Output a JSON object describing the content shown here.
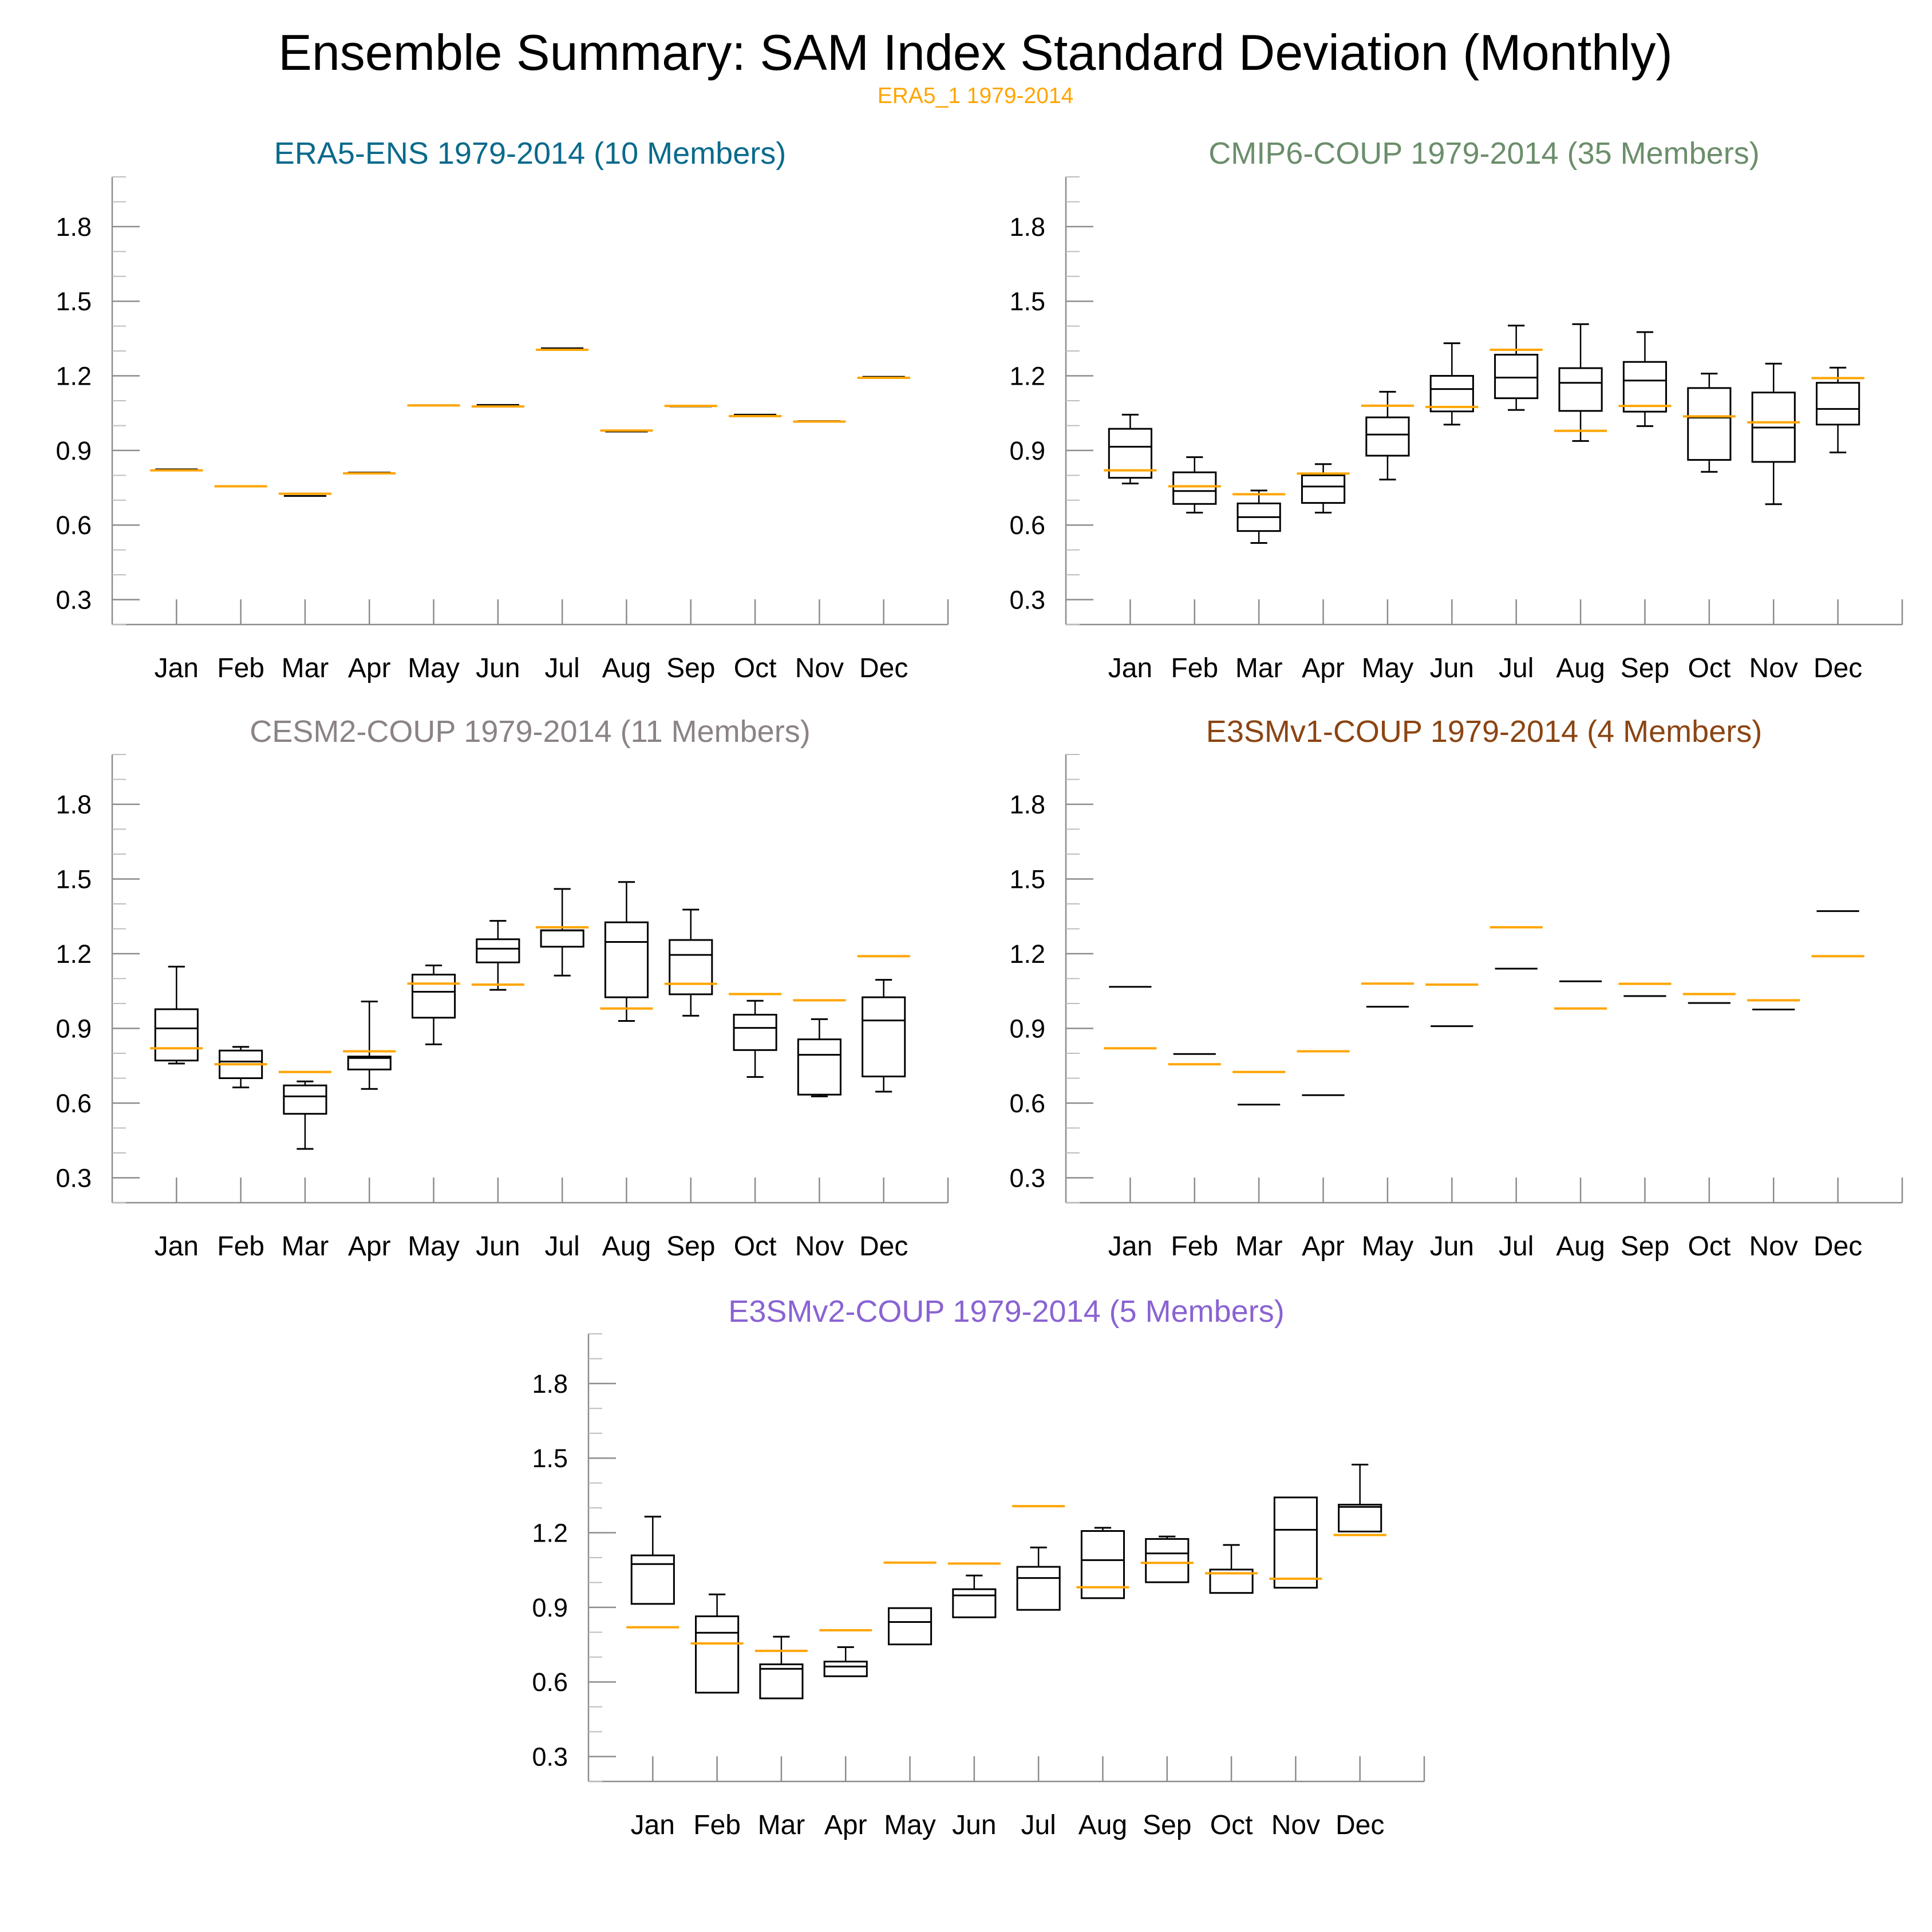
{
  "figure": {
    "title": "Ensemble Summary: SAM Index Standard Deviation (Monthly)",
    "subtitle": "ERA5_1 1979-2014",
    "subtitle_color": "#FFA500"
  },
  "chart_data": [
    {
      "type": "box",
      "title": "ERA5-ENS 1979-2014 (10 Members)",
      "title_color": "#0B6A8C",
      "categories": [
        "Jan",
        "Feb",
        "Mar",
        "Apr",
        "May",
        "Jun",
        "Jul",
        "Aug",
        "Sep",
        "Oct",
        "Nov",
        "Dec"
      ],
      "ylim": [
        0.2,
        2.0
      ],
      "yticks": [
        "0.3",
        "0.6",
        "0.9",
        "1.2",
        "1.5",
        "1.8"
      ],
      "y_minor_step": 0.1,
      "xlim": [
        0,
        13
      ],
      "reference": {
        "name": "ERA5_1 1979-2014",
        "color": "#FFA500",
        "values": [
          0.82,
          0.756,
          0.726,
          0.808,
          1.081,
          1.077,
          1.305,
          0.98,
          1.079,
          1.038,
          1.016,
          1.192
        ]
      },
      "boxes": [
        {
          "whisker_low": 0.822,
          "q1": 0.822,
          "median": 0.824,
          "q3": 0.825,
          "whisker_high": 0.825
        },
        {
          "whisker_low": 0.755,
          "q1": 0.756,
          "median": 0.757,
          "q3": 0.758,
          "whisker_high": 0.759
        },
        {
          "whisker_low": 0.712,
          "q1": 0.716,
          "median": 0.717,
          "q3": 0.718,
          "whisker_high": 0.719
        },
        {
          "whisker_low": 0.809,
          "q1": 0.81,
          "median": 0.811,
          "q3": 0.812,
          "whisker_high": 0.813
        },
        {
          "whisker_low": 1.08,
          "q1": 1.081,
          "median": 1.082,
          "q3": 1.083,
          "whisker_high": 1.084
        },
        {
          "whisker_low": 1.08,
          "q1": 1.081,
          "median": 1.083,
          "q3": 1.085,
          "whisker_high": 1.086
        },
        {
          "whisker_low": 1.309,
          "q1": 1.31,
          "median": 1.311,
          "q3": 1.312,
          "whisker_high": 1.313
        },
        {
          "whisker_low": 0.973,
          "q1": 0.975,
          "median": 0.976,
          "q3": 0.977,
          "whisker_high": 0.978
        },
        {
          "whisker_low": 1.073,
          "q1": 1.076,
          "median": 1.077,
          "q3": 1.078,
          "whisker_high": 1.079
        },
        {
          "whisker_low": 1.042,
          "q1": 1.043,
          "median": 1.044,
          "q3": 1.045,
          "whisker_high": 1.046
        },
        {
          "whisker_low": 1.016,
          "q1": 1.017,
          "median": 1.018,
          "q3": 1.019,
          "whisker_high": 1.02
        },
        {
          "whisker_low": 1.194,
          "q1": 1.195,
          "median": 1.196,
          "q3": 1.197,
          "whisker_high": 1.198
        }
      ]
    },
    {
      "type": "box",
      "title": "CMIP6-COUP 1979-2014 (35 Members)",
      "title_color": "#6B8E6B",
      "categories": [
        "Jan",
        "Feb",
        "Mar",
        "Apr",
        "May",
        "Jun",
        "Jul",
        "Aug",
        "Sep",
        "Oct",
        "Nov",
        "Dec"
      ],
      "ylim": [
        0.2,
        2.0
      ],
      "yticks": [
        "0.3",
        "0.6",
        "0.9",
        "1.2",
        "1.5",
        "1.8"
      ],
      "y_minor_step": 0.1,
      "xlim": [
        0,
        13
      ],
      "reference": {
        "name": "ERA5_1 1979-2014",
        "color": "#FFA500",
        "values": [
          0.82,
          0.756,
          0.724,
          0.807,
          1.08,
          1.075,
          1.305,
          0.979,
          1.079,
          1.037,
          1.013,
          1.191
        ]
      },
      "boxes": [
        {
          "whisker_low": 0.767,
          "q1": 0.79,
          "median": 0.915,
          "q3": 0.987,
          "whisker_high": 1.044
        },
        {
          "whisker_low": 0.65,
          "q1": 0.685,
          "median": 0.737,
          "q3": 0.812,
          "whisker_high": 0.873
        },
        {
          "whisker_low": 0.528,
          "q1": 0.576,
          "median": 0.632,
          "q3": 0.687,
          "whisker_high": 0.739
        },
        {
          "whisker_low": 0.65,
          "q1": 0.689,
          "median": 0.755,
          "q3": 0.8,
          "whisker_high": 0.845
        },
        {
          "whisker_low": 0.783,
          "q1": 0.879,
          "median": 0.964,
          "q3": 1.033,
          "whisker_high": 1.136
        },
        {
          "whisker_low": 1.004,
          "q1": 1.057,
          "median": 1.147,
          "q3": 1.2,
          "whisker_high": 1.331
        },
        {
          "whisker_low": 1.063,
          "q1": 1.11,
          "median": 1.193,
          "q3": 1.285,
          "whisker_high": 1.402
        },
        {
          "whisker_low": 0.938,
          "q1": 1.059,
          "median": 1.172,
          "q3": 1.231,
          "whisker_high": 1.408
        },
        {
          "whisker_low": 0.998,
          "q1": 1.056,
          "median": 1.181,
          "q3": 1.256,
          "whisker_high": 1.376
        },
        {
          "whisker_low": 0.814,
          "q1": 0.862,
          "median": 1.032,
          "q3": 1.151,
          "whisker_high": 1.209
        },
        {
          "whisker_low": 0.684,
          "q1": 0.854,
          "median": 0.992,
          "q3": 1.133,
          "whisker_high": 1.249
        },
        {
          "whisker_low": 0.892,
          "q1": 1.004,
          "median": 1.067,
          "q3": 1.172,
          "whisker_high": 1.233
        }
      ]
    },
    {
      "type": "box",
      "title": "CESM2-COUP 1979-2014 (11 Members)",
      "title_color": "#8B8386",
      "categories": [
        "Jan",
        "Feb",
        "Mar",
        "Apr",
        "May",
        "Jun",
        "Jul",
        "Aug",
        "Sep",
        "Oct",
        "Nov",
        "Dec"
      ],
      "ylim": [
        0.2,
        2.0
      ],
      "yticks": [
        "0.3",
        "0.6",
        "0.9",
        "1.2",
        "1.5",
        "1.8"
      ],
      "y_minor_step": 0.1,
      "xlim": [
        0,
        13
      ],
      "reference": {
        "name": "ERA5_1 1979-2014",
        "color": "#FFA500",
        "values": [
          0.82,
          0.756,
          0.725,
          0.808,
          1.08,
          1.076,
          1.306,
          0.98,
          1.079,
          1.038,
          1.013,
          1.19
        ]
      },
      "boxes": [
        {
          "whisker_low": 0.759,
          "q1": 0.771,
          "median": 0.9,
          "q3": 0.977,
          "whisker_high": 1.148
        },
        {
          "whisker_low": 0.663,
          "q1": 0.7,
          "median": 0.767,
          "q3": 0.811,
          "whisker_high": 0.826
        },
        {
          "whisker_low": 0.416,
          "q1": 0.557,
          "median": 0.627,
          "q3": 0.671,
          "whisker_high": 0.687
        },
        {
          "whisker_low": 0.657,
          "q1": 0.735,
          "median": 0.781,
          "q3": 0.787,
          "whisker_high": 1.008
        },
        {
          "whisker_low": 0.836,
          "q1": 0.943,
          "median": 1.047,
          "q3": 1.116,
          "whisker_high": 1.153
        },
        {
          "whisker_low": 1.055,
          "q1": 1.165,
          "median": 1.22,
          "q3": 1.258,
          "whisker_high": 1.332
        },
        {
          "whisker_low": 1.112,
          "q1": 1.228,
          "median": 1.293,
          "q3": 1.294,
          "whisker_high": 1.46
        },
        {
          "whisker_low": 0.93,
          "q1": 1.025,
          "median": 1.247,
          "q3": 1.326,
          "whisker_high": 1.488
        },
        {
          "whisker_low": 0.951,
          "q1": 1.037,
          "median": 1.195,
          "q3": 1.255,
          "whisker_high": 1.377
        },
        {
          "whisker_low": 0.705,
          "q1": 0.813,
          "median": 0.902,
          "q3": 0.955,
          "whisker_high": 1.011
        },
        {
          "whisker_low": 0.627,
          "q1": 0.634,
          "median": 0.794,
          "q3": 0.856,
          "whisker_high": 0.937
        },
        {
          "whisker_low": 0.646,
          "q1": 0.707,
          "median": 0.932,
          "q3": 1.025,
          "whisker_high": 1.095
        }
      ]
    },
    {
      "type": "box",
      "title": "E3SMv1-COUP 1979-2014 (4 Members)",
      "title_color": "#8B4513",
      "categories": [
        "Jan",
        "Feb",
        "Mar",
        "Apr",
        "May",
        "Jun",
        "Jul",
        "Aug",
        "Sep",
        "Oct",
        "Nov",
        "Dec"
      ],
      "ylim": [
        0.2,
        2.0
      ],
      "yticks": [
        "0.3",
        "0.6",
        "0.9",
        "1.2",
        "1.5",
        "1.8"
      ],
      "y_minor_step": 0.1,
      "xlim": [
        0,
        13
      ],
      "reference": {
        "name": "ERA5_1 1979-2014",
        "color": "#FFA500",
        "values": [
          0.82,
          0.756,
          0.725,
          0.808,
          1.08,
          1.076,
          1.306,
          0.98,
          1.079,
          1.038,
          1.013,
          1.19
        ]
      },
      "boxes": [
        {
          "whisker_low": 1.067,
          "q1": 1.067,
          "median": 1.067,
          "q3": 1.067,
          "whisker_high": 1.067
        },
        {
          "whisker_low": 0.797,
          "q1": 0.797,
          "median": 0.797,
          "q3": 0.797,
          "whisker_high": 0.797
        },
        {
          "whisker_low": 0.594,
          "q1": 0.594,
          "median": 0.594,
          "q3": 0.594,
          "whisker_high": 0.594
        },
        {
          "whisker_low": 0.632,
          "q1": 0.632,
          "median": 0.632,
          "q3": 0.632,
          "whisker_high": 0.632
        },
        {
          "whisker_low": 0.987,
          "q1": 0.987,
          "median": 0.987,
          "q3": 0.987,
          "whisker_high": 0.987
        },
        {
          "whisker_low": 0.909,
          "q1": 0.909,
          "median": 0.909,
          "q3": 0.909,
          "whisker_high": 0.909
        },
        {
          "whisker_low": 1.14,
          "q1": 1.14,
          "median": 1.14,
          "q3": 1.14,
          "whisker_high": 1.14
        },
        {
          "whisker_low": 1.089,
          "q1": 1.089,
          "median": 1.089,
          "q3": 1.089,
          "whisker_high": 1.089
        },
        {
          "whisker_low": 1.03,
          "q1": 1.03,
          "median": 1.03,
          "q3": 1.03,
          "whisker_high": 1.03
        },
        {
          "whisker_low": 1.002,
          "q1": 1.002,
          "median": 1.002,
          "q3": 1.002,
          "whisker_high": 1.002
        },
        {
          "whisker_low": 0.976,
          "q1": 0.976,
          "median": 0.976,
          "q3": 0.976,
          "whisker_high": 0.976
        },
        {
          "whisker_low": 1.371,
          "q1": 1.371,
          "median": 1.371,
          "q3": 1.371,
          "whisker_high": 1.371
        }
      ]
    },
    {
      "type": "box",
      "title": "E3SMv2-COUP 1979-2014 (5 Members)",
      "title_color": "#8A63D2",
      "categories": [
        "Jan",
        "Feb",
        "Mar",
        "Apr",
        "May",
        "Jun",
        "Jul",
        "Aug",
        "Sep",
        "Oct",
        "Nov",
        "Dec"
      ],
      "ylim": [
        0.2,
        2.0
      ],
      "yticks": [
        "0.3",
        "0.6",
        "0.9",
        "1.2",
        "1.5",
        "1.8"
      ],
      "y_minor_step": 0.1,
      "xlim": [
        0,
        13
      ],
      "reference": {
        "name": "ERA5_1 1979-2014",
        "color": "#FFA500",
        "values": [
          0.82,
          0.755,
          0.725,
          0.808,
          1.08,
          1.076,
          1.307,
          0.981,
          1.079,
          1.037,
          1.015,
          1.191
        ]
      },
      "boxes": [
        {
          "whisker_low": 0.914,
          "q1": 0.914,
          "median": 1.074,
          "q3": 1.109,
          "whisker_high": 1.265
        },
        {
          "whisker_low": 0.557,
          "q1": 0.557,
          "median": 0.798,
          "q3": 0.864,
          "whisker_high": 0.952
        },
        {
          "whisker_low": 0.534,
          "q1": 0.534,
          "median": 0.653,
          "q3": 0.671,
          "whisker_high": 0.782
        },
        {
          "whisker_low": 0.623,
          "q1": 0.623,
          "median": 0.662,
          "q3": 0.682,
          "whisker_high": 0.74
        },
        {
          "whisker_low": 0.751,
          "q1": 0.751,
          "median": 0.841,
          "q3": 0.897,
          "whisker_high": 0.899
        },
        {
          "whisker_low": 0.86,
          "q1": 0.86,
          "median": 0.948,
          "q3": 0.973,
          "whisker_high": 1.028
        },
        {
          "whisker_low": 0.89,
          "q1": 0.89,
          "median": 1.018,
          "q3": 1.063,
          "whisker_high": 1.141
        },
        {
          "whisker_low": 0.937,
          "q1": 0.937,
          "median": 1.09,
          "q3": 1.207,
          "whisker_high": 1.22
        },
        {
          "whisker_low": 1.001,
          "q1": 1.001,
          "median": 1.117,
          "q3": 1.175,
          "whisker_high": 1.185
        },
        {
          "whisker_low": 0.958,
          "q1": 0.958,
          "median": 1.037,
          "q3": 1.052,
          "whisker_high": 1.151
        },
        {
          "whisker_low": 0.979,
          "q1": 0.979,
          "median": 1.212,
          "q3": 1.342,
          "whisker_high": 1.342
        },
        {
          "whisker_low": 1.205,
          "q1": 1.205,
          "median": 1.304,
          "q3": 1.313,
          "whisker_high": 1.474
        }
      ]
    }
  ]
}
